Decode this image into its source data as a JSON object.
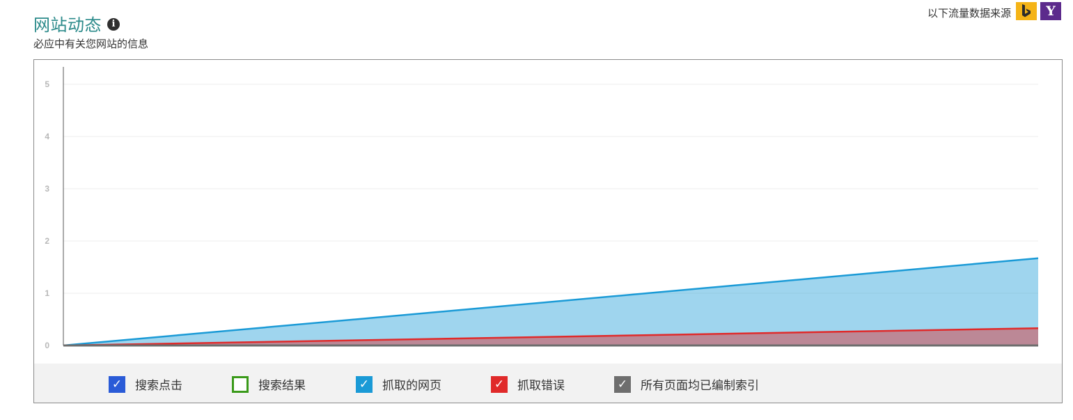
{
  "header": {
    "title": "网站动态",
    "subtitle": "必应中有关您网站的信息",
    "source_label": "以下流量数据来源",
    "source_logos": [
      {
        "name": "bing-logo",
        "color": "#f5b417"
      },
      {
        "name": "yahoo-logo",
        "glyph": "Y",
        "color": "#5c2a8c"
      }
    ]
  },
  "chart_data": {
    "type": "area",
    "title": "",
    "xlabel": "",
    "ylabel": "",
    "ylim": [
      0,
      5.2
    ],
    "yticks": [
      0,
      1,
      2,
      3,
      4,
      5
    ],
    "x": [
      0,
      1
    ],
    "grid": true,
    "legend_position": "bottom",
    "series": [
      {
        "name": "搜索点击",
        "values": [
          0,
          0
        ],
        "color": "#2a5bd7",
        "checked": true
      },
      {
        "name": "搜索结果",
        "values": [
          0,
          0
        ],
        "color": "#3a9a1a",
        "checked": false
      },
      {
        "name": "抓取的网页",
        "values": [
          0,
          1.67
        ],
        "color": "#1a9ad6",
        "checked": true
      },
      {
        "name": "抓取错误",
        "values": [
          0,
          0.33
        ],
        "color": "#e02a2a",
        "checked": true
      },
      {
        "name": "所有页面均已编制索引",
        "values": [
          0,
          0
        ],
        "color": "#6e6e6e",
        "checked": true
      }
    ]
  }
}
